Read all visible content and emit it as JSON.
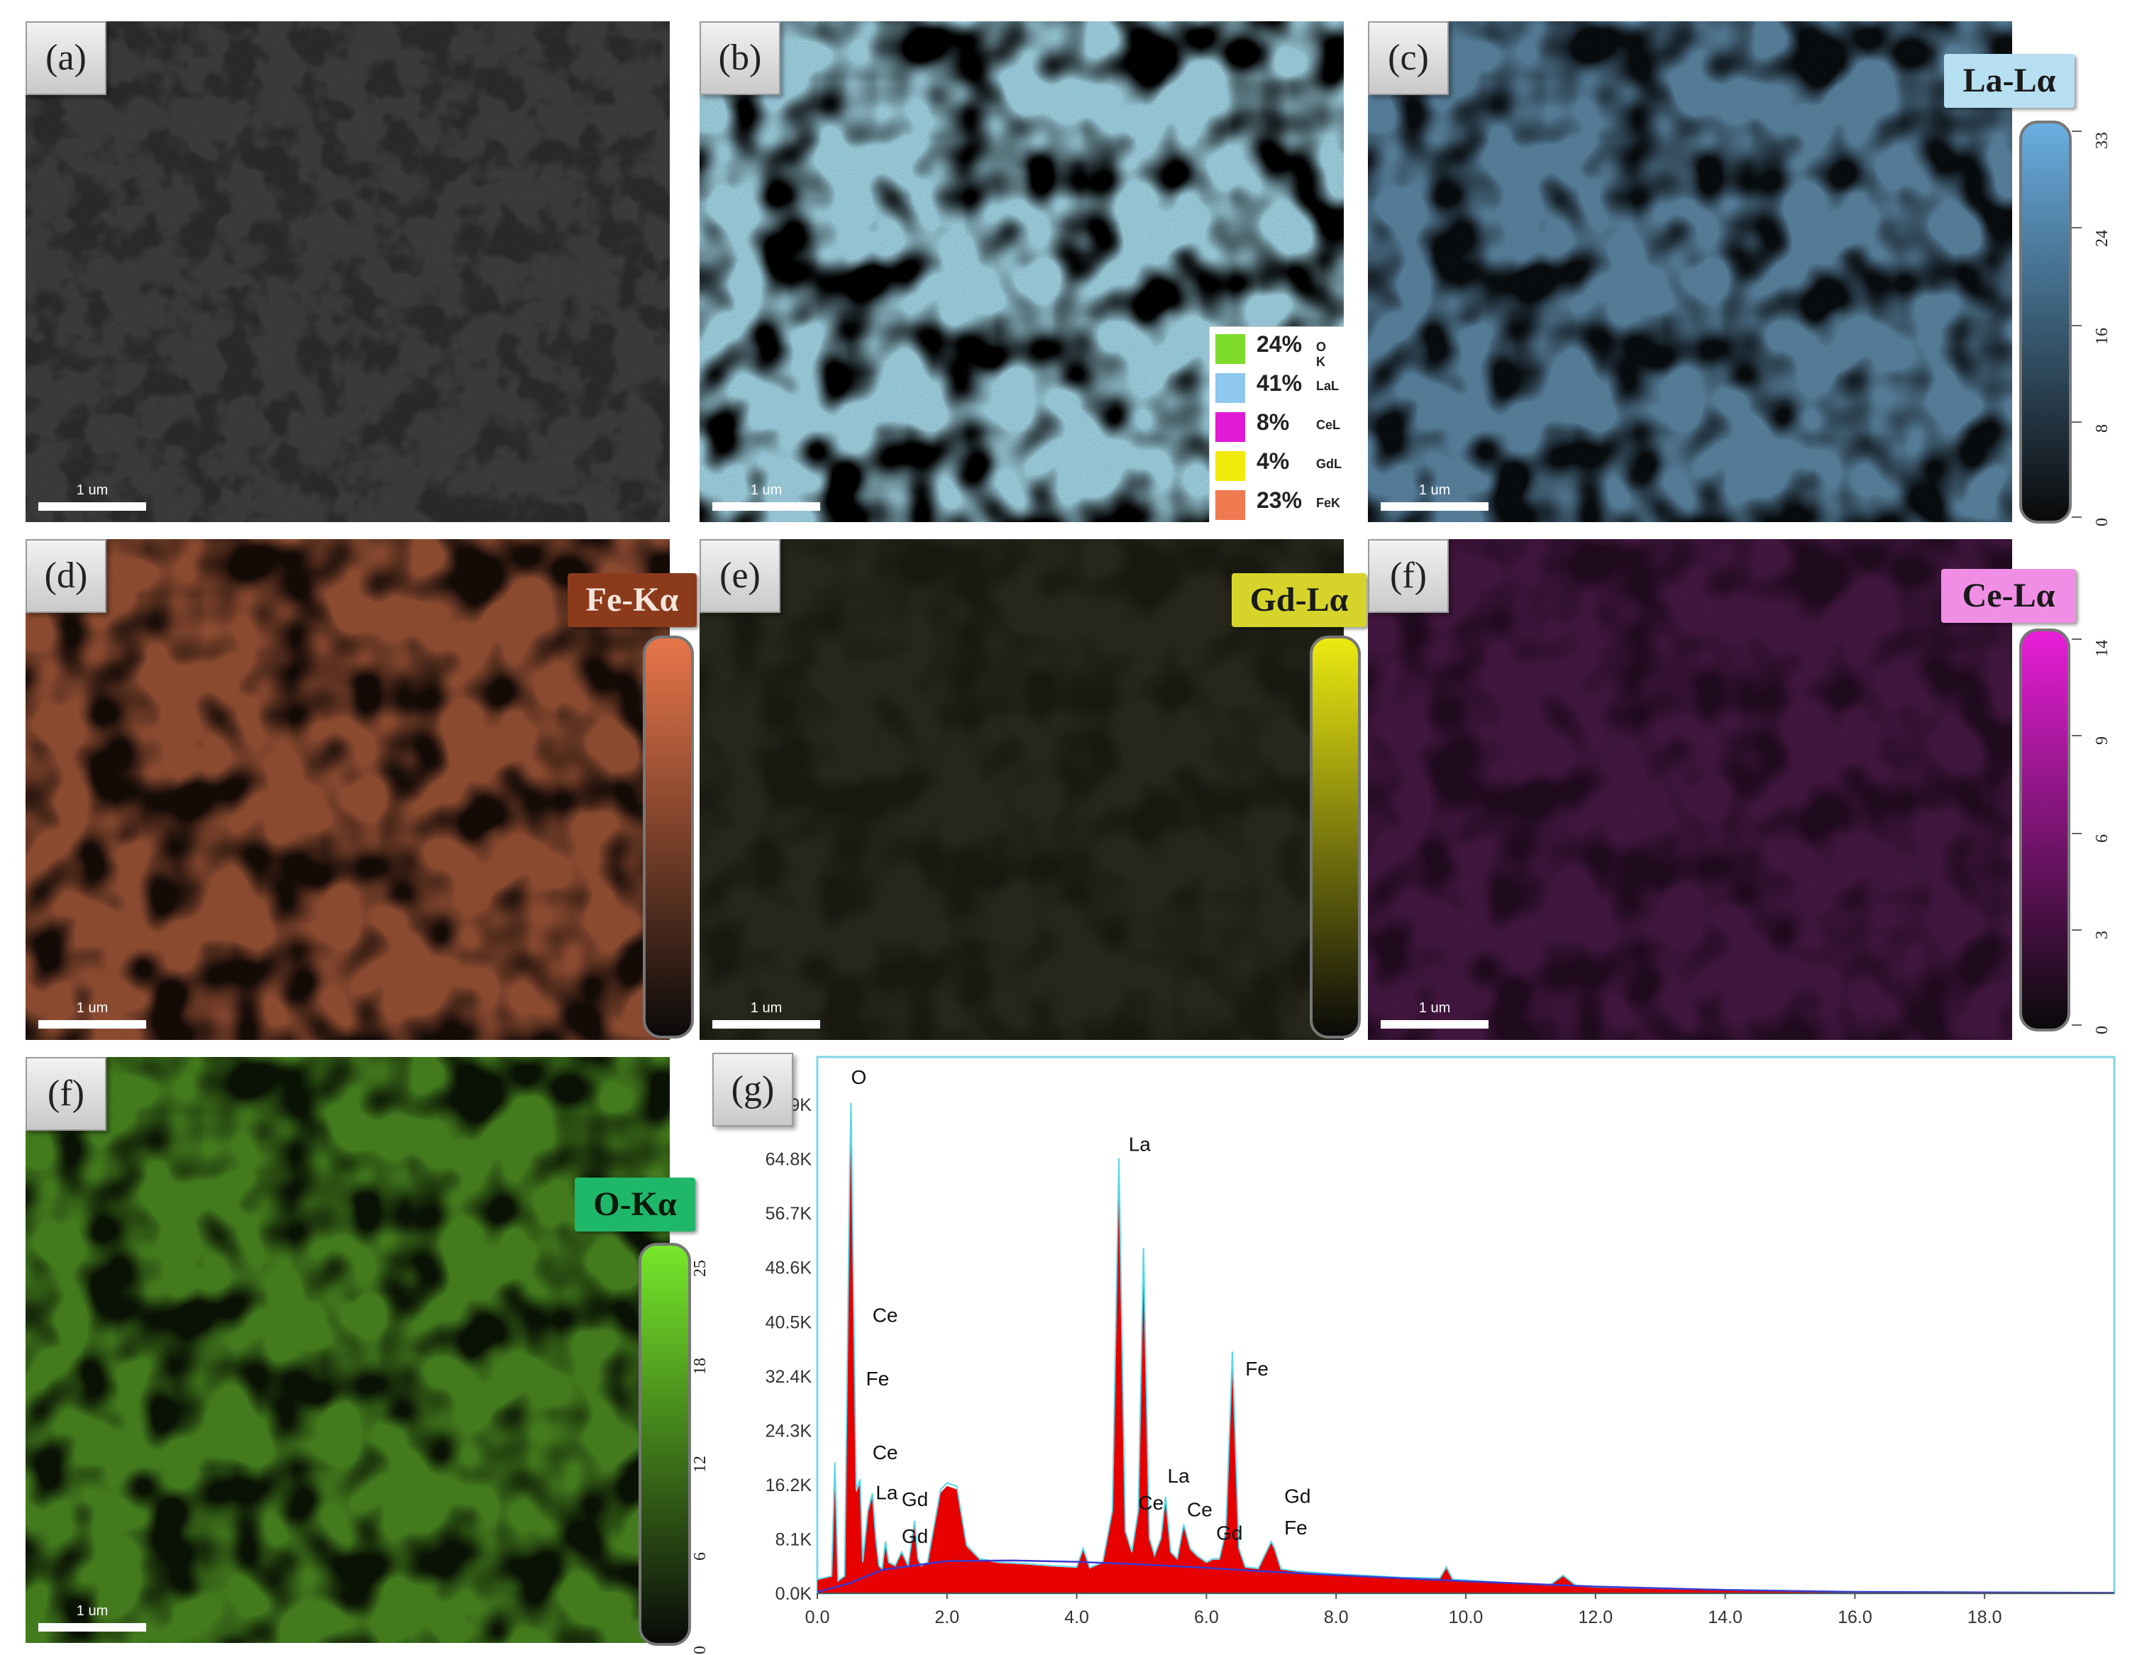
{
  "scale_bar_text": "1 um",
  "panels": {
    "a": {
      "label": "(a)"
    },
    "b": {
      "label": "(b)"
    },
    "c": {
      "label": "(c)",
      "tag": "La-Lα",
      "tag_bg": "#b7dff2",
      "ticks": [
        "33",
        "24",
        "16",
        "8",
        "0"
      ],
      "color": "#6aaee0"
    },
    "d": {
      "label": "(d)",
      "tag": "Fe-Kα",
      "tag_bg": "#8b3a1c",
      "color": "#e8764a"
    },
    "e": {
      "label": "(e)",
      "tag": "Gd-Lα",
      "tag_bg": "#d6d42a",
      "color": "#ecea10"
    },
    "f1": {
      "label": "(f)",
      "tag": "Ce-Lα",
      "tag_bg": "#f08ee6",
      "ticks": [
        "14",
        "9",
        "6",
        "3",
        "0"
      ],
      "color": "#e81ed8"
    },
    "f2": {
      "label": "(f)",
      "tag": "O-Kα",
      "tag_bg": "#1fb86a",
      "ticks": [
        "25",
        "18",
        "12",
        "6",
        "0"
      ],
      "color": "#76e82a"
    },
    "g": {
      "label": "(g)"
    }
  },
  "composite_legend": [
    {
      "pct": "24%",
      "element": "O K",
      "color": "#7ddc2a"
    },
    {
      "pct": "41%",
      "element": "LaL",
      "color": "#8ec8ef"
    },
    {
      "pct": "8%",
      "element": "CeL",
      "color": "#e01ad6"
    },
    {
      "pct": "4%",
      "element": "GdL",
      "color": "#f2ea0a"
    },
    {
      "pct": "23%",
      "element": "FeK",
      "color": "#f07a50"
    }
  ],
  "chart_data": {
    "type": "area",
    "x_ticks": [
      "0.0",
      "2.0",
      "4.0",
      "6.0",
      "8.0",
      "10.0",
      "12.0",
      "14.0",
      "16.0",
      "18.0"
    ],
    "y_ticks": [
      "0.0K",
      "8.1K",
      "16.2K",
      "24.3K",
      "32.4K",
      "40.5K",
      "48.6K",
      "56.7K",
      "64.8K"
    ],
    "y_ticks_partial": [
      "9K",
      "0K"
    ],
    "xlim": [
      0,
      20
    ],
    "ylim": [
      0,
      80000
    ],
    "x": [
      0.0,
      0.22,
      0.27,
      0.32,
      0.42,
      0.5,
      0.52,
      0.6,
      0.66,
      0.7,
      0.78,
      0.85,
      0.9,
      0.95,
      1.0,
      1.05,
      1.1,
      1.2,
      1.3,
      1.4,
      1.5,
      1.55,
      1.6,
      1.7,
      1.9,
      2.0,
      2.15,
      2.3,
      2.5,
      2.8,
      3.2,
      3.6,
      4.0,
      4.1,
      4.2,
      4.4,
      4.55,
      4.65,
      4.75,
      4.85,
      4.95,
      5.03,
      5.12,
      5.2,
      5.3,
      5.37,
      5.45,
      5.55,
      5.65,
      5.75,
      5.85,
      6.0,
      6.1,
      6.2,
      6.3,
      6.4,
      6.5,
      6.6,
      6.8,
      7.0,
      7.05,
      7.15,
      7.4,
      8.0,
      9.0,
      9.6,
      9.7,
      9.8,
      10.5,
      11.3,
      11.5,
      11.7,
      12.0,
      14.0,
      16.0,
      18.0,
      20.0
    ],
    "y": [
      2000,
      2500,
      19000,
      1800,
      2500,
      62000,
      71000,
      15000,
      16500,
      4500,
      12000,
      14500,
      8000,
      4000,
      3500,
      7500,
      4500,
      4000,
      6000,
      4000,
      10500,
      5000,
      4000,
      4500,
      15000,
      16000,
      15500,
      7000,
      5000,
      4500,
      4300,
      4000,
      3800,
      6500,
      3700,
      4500,
      12000,
      63000,
      9000,
      6000,
      12000,
      50000,
      8000,
      5500,
      8000,
      14000,
      6000,
      5000,
      10000,
      6500,
      5500,
      4500,
      5000,
      5000,
      9000,
      35000,
      6500,
      3800,
      3600,
      7500,
      6500,
      3500,
      3200,
      2800,
      2300,
      2200,
      3800,
      2000,
      1600,
      1200,
      2600,
      1100,
      900,
      500,
      250,
      150,
      100
    ],
    "bg_x": [
      0,
      0.5,
      1,
      2,
      3,
      4,
      5,
      6,
      7,
      8,
      10,
      12,
      14,
      16,
      20
    ],
    "bg_y": [
      200,
      1500,
      3500,
      4800,
      4900,
      4700,
      4300,
      3800,
      3200,
      2700,
      1800,
      1000,
      500,
      200,
      50
    ],
    "peak_labels": [
      {
        "text": "O",
        "x": 0.52,
        "y": 76000
      },
      {
        "text": "La",
        "x": 4.8,
        "y": 66000
      },
      {
        "text": "Ce",
        "x": 0.85,
        "y": 40500
      },
      {
        "text": "Fe",
        "x": 0.75,
        "y": 31000
      },
      {
        "text": "Ce",
        "x": 0.85,
        "y": 20000
      },
      {
        "text": "La",
        "x": 0.9,
        "y": 14000
      },
      {
        "text": "Gd",
        "x": 1.3,
        "y": 13000
      },
      {
        "text": "Gd",
        "x": 1.3,
        "y": 7500
      },
      {
        "text": "Fe",
        "x": 6.6,
        "y": 32500
      },
      {
        "text": "La",
        "x": 5.4,
        "y": 16500
      },
      {
        "text": "Ce",
        "x": 4.95,
        "y": 12500
      },
      {
        "text": "Ce",
        "x": 5.7,
        "y": 11500
      },
      {
        "text": "Gd",
        "x": 6.15,
        "y": 8000
      },
      {
        "text": "Gd",
        "x": 7.2,
        "y": 13500
      },
      {
        "text": "Fe",
        "x": 7.2,
        "y": 8800
      }
    ]
  }
}
